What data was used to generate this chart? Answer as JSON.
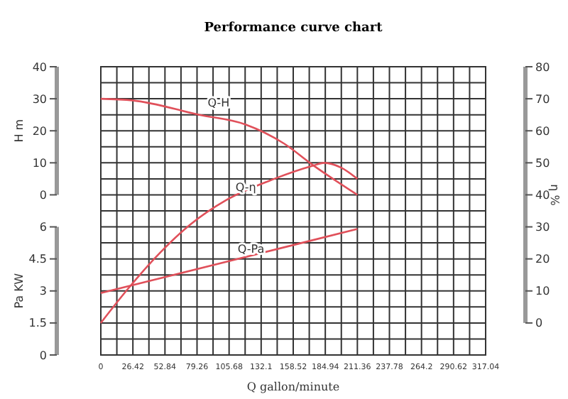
{
  "chart_data": {
    "type": "line",
    "title": "Performance curve chart",
    "xlabel": "Q gallon/minute",
    "ylabel": "H m",
    "y2label": "η %",
    "y3label": "Pa KW",
    "xlim": [
      0,
      317.04
    ],
    "xticks": [
      0,
      26.42,
      52.84,
      79.26,
      105.68,
      132.1,
      158.52,
      184.94,
      211.36,
      237.78,
      264.2,
      290.62,
      317.04
    ],
    "ylim": [
      -50,
      40
    ],
    "yticks": [
      0,
      10,
      20,
      30,
      40
    ],
    "y2lim": [
      -10,
      80
    ],
    "y2ticks": [
      0,
      10,
      20,
      30,
      40,
      50,
      60,
      70,
      80
    ],
    "y3lim": [
      0,
      13.5
    ],
    "y3ticks": [
      0,
      1.5,
      3,
      4.5,
      6
    ],
    "grid": true,
    "marker": "none",
    "line_style": "solid",
    "series": [
      {
        "name": "Q-H",
        "color": "#e0505a",
        "x": [
          0,
          26,
          81,
          119,
          151,
          174,
          211.36
        ],
        "values": [
          30,
          29.5,
          25,
          22,
          16,
          9.5,
          0
        ]
      },
      {
        "name": "Q-η",
        "color": "#e0505a",
        "axis": "y2",
        "x": [
          0,
          22,
          49,
          73,
          104,
          143,
          174,
          184,
          198,
          211.36
        ],
        "values": [
          0,
          10.5,
          22,
          30.5,
          38.5,
          45,
          49,
          50,
          48.5,
          45
        ]
      },
      {
        "name": "Q-Pa",
        "color": "#e0505a",
        "axis": "y3",
        "x": [
          0,
          105.68,
          211.36
        ],
        "values": [
          2.9,
          4.4,
          5.9
        ]
      }
    ]
  }
}
